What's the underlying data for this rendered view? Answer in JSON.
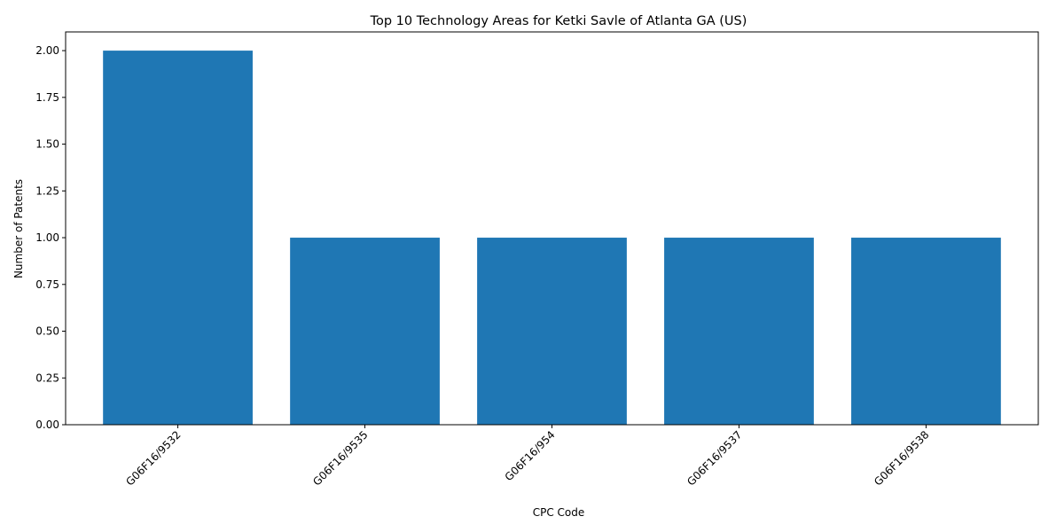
{
  "chart_data": {
    "type": "bar",
    "title": "Top 10 Technology Areas for Ketki Savle of Atlanta GA (US)",
    "xlabel": "CPC Code",
    "ylabel": "Number of Patents",
    "categories": [
      "G06F16/9532",
      "G06F16/9535",
      "G06F16/954",
      "G06F16/9537",
      "G06F16/9538"
    ],
    "values": [
      2,
      1,
      1,
      1,
      1
    ],
    "ylim": [
      0,
      2.1
    ],
    "yticks": [
      "0.00",
      "0.25",
      "0.50",
      "0.75",
      "1.00",
      "1.25",
      "1.50",
      "1.75",
      "2.00"
    ],
    "bar_color": "#1f77b4",
    "grid": false,
    "legend": "none"
  }
}
